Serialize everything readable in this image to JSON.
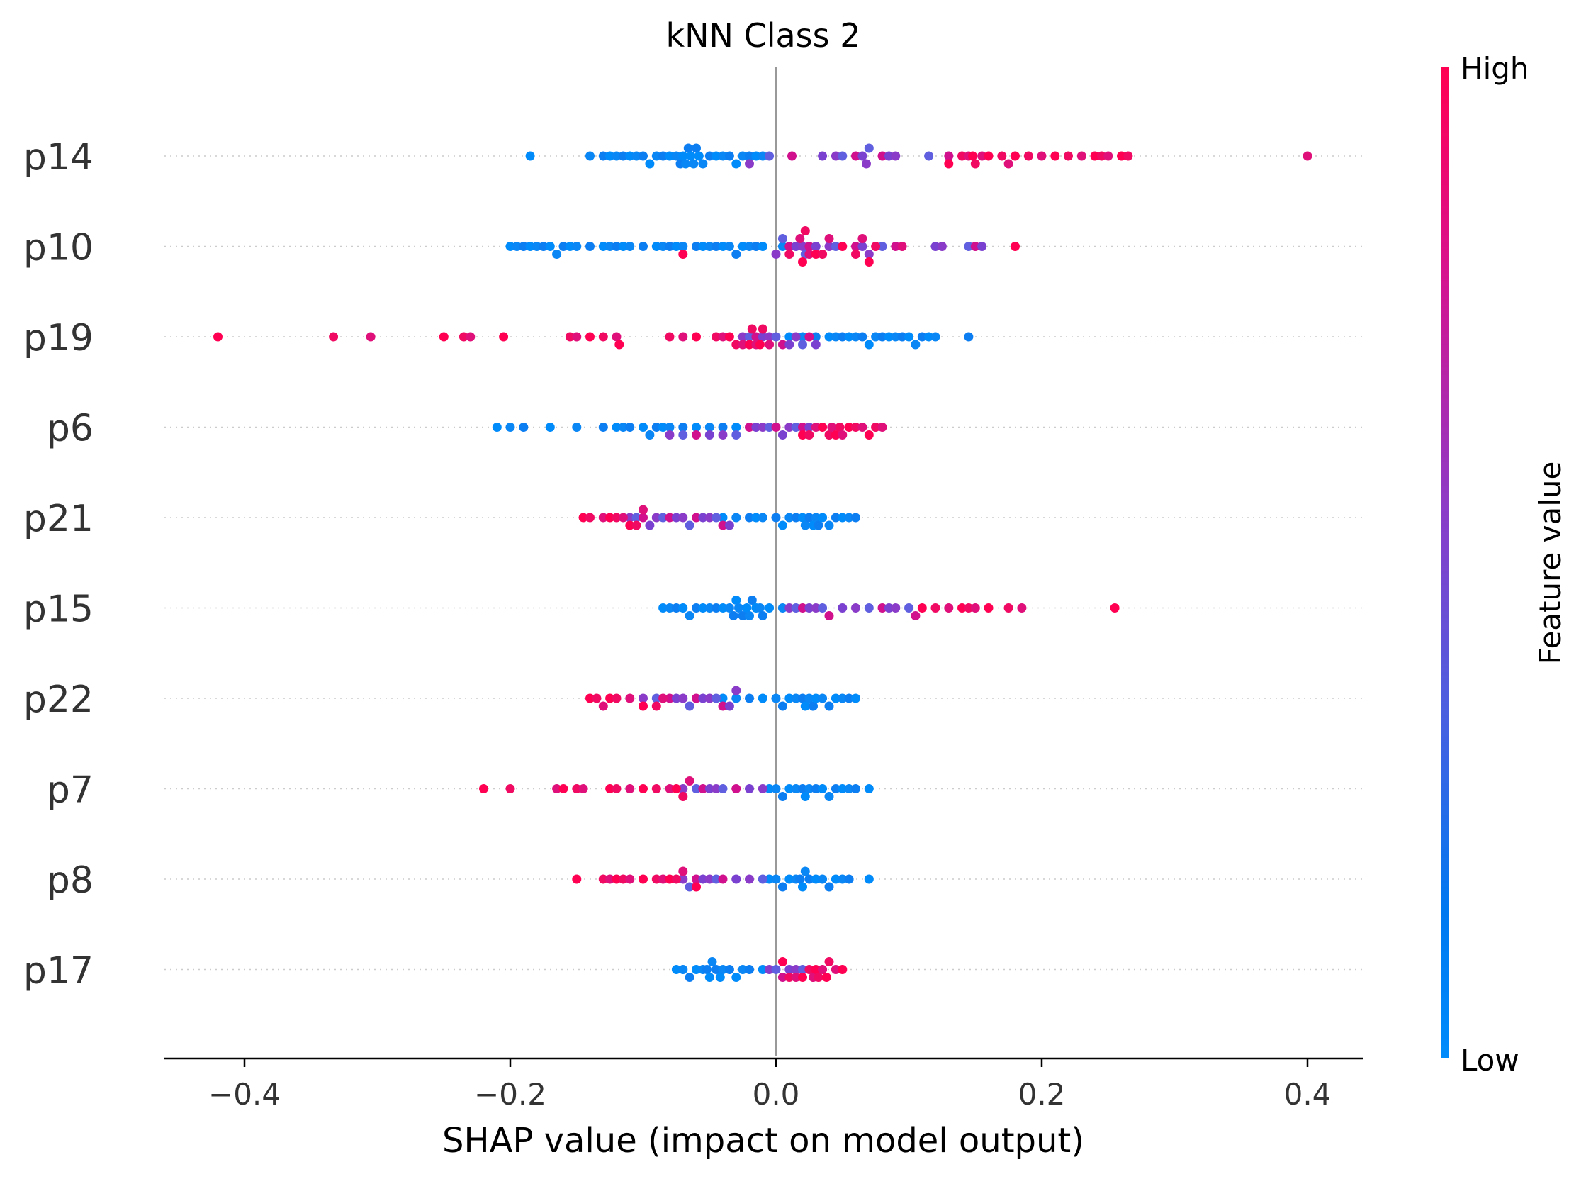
{
  "chart_data": {
    "type": "scatter",
    "subtype": "shap-beeswarm",
    "title": "kNN Class 2",
    "xlabel": "SHAP value (impact on model output)",
    "xlim": [
      -0.46,
      0.44
    ],
    "xticks": [
      {
        "value": -0.4,
        "label": "−0.4"
      },
      {
        "value": -0.2,
        "label": "−0.2"
      },
      {
        "value": 0.0,
        "label": "0.0"
      },
      {
        "value": 0.2,
        "label": "0.2"
      },
      {
        "value": 0.4,
        "label": "0.4"
      }
    ],
    "colorbar": {
      "title": "Feature value",
      "high_label": "High",
      "low_label": "Low",
      "high_color": "#ff0052",
      "low_color": "#008bfb"
    },
    "zero_line_color": "#999999",
    "features": [
      {
        "name": "p14",
        "low_points": [
          -0.185,
          -0.14,
          -0.13,
          -0.125,
          -0.12,
          -0.115,
          -0.11,
          -0.105,
          -0.1,
          -0.095,
          -0.09,
          -0.085,
          -0.08,
          -0.075,
          -0.072,
          -0.07,
          -0.068,
          -0.066,
          -0.064,
          -0.062,
          -0.06,
          -0.058,
          -0.055,
          -0.05,
          -0.045,
          -0.04,
          -0.035,
          -0.03,
          -0.025,
          -0.02,
          -0.015,
          -0.01
        ],
        "mid_points": [
          -0.02,
          -0.005,
          0.012,
          0.035,
          0.045,
          0.05,
          0.06,
          0.065,
          0.068,
          0.07,
          0.08,
          0.085,
          0.09,
          0.115,
          0.13
        ],
        "high_points": [
          0.13,
          0.14,
          0.145,
          0.148,
          0.15,
          0.155,
          0.16,
          0.17,
          0.175,
          0.18,
          0.19,
          0.2,
          0.21,
          0.22,
          0.23,
          0.24,
          0.245,
          0.25,
          0.26,
          0.265,
          0.4
        ]
      },
      {
        "name": "p10",
        "low_points": [
          -0.2,
          -0.195,
          -0.19,
          -0.185,
          -0.18,
          -0.175,
          -0.17,
          -0.165,
          -0.16,
          -0.155,
          -0.15,
          -0.14,
          -0.13,
          -0.125,
          -0.12,
          -0.115,
          -0.11,
          -0.1,
          -0.09,
          -0.085,
          -0.08,
          -0.075,
          -0.07,
          -0.06,
          -0.055,
          -0.05,
          -0.045,
          -0.04,
          -0.035,
          -0.03,
          -0.025,
          -0.02,
          -0.015,
          -0.01,
          0.005
        ],
        "mid_points": [
          0.0,
          0.005,
          0.01,
          0.015,
          0.02,
          0.022,
          0.025,
          0.03,
          0.04,
          0.045,
          0.06,
          0.065,
          0.07,
          0.08,
          0.09,
          0.12,
          0.125,
          0.145,
          0.15,
          0.155
        ],
        "high_points": [
          -0.07,
          0.01,
          0.018,
          0.02,
          0.022,
          0.025,
          0.03,
          0.035,
          0.04,
          0.05,
          0.06,
          0.065,
          0.07,
          0.075,
          0.095,
          0.18
        ]
      },
      {
        "name": "p19",
        "high_points": [
          -0.42,
          -0.333,
          -0.305,
          -0.25,
          -0.235,
          -0.23,
          -0.205,
          -0.155,
          -0.15,
          -0.14,
          -0.13,
          -0.12,
          -0.118,
          -0.08,
          -0.07,
          -0.06,
          -0.045,
          -0.04,
          -0.035,
          -0.03,
          -0.025,
          -0.02,
          -0.018,
          -0.015,
          -0.012,
          -0.01,
          -0.005
        ],
        "mid_points": [
          -0.025,
          -0.02,
          -0.015,
          -0.01,
          -0.005,
          0.0,
          0.005,
          0.01,
          0.015,
          0.02,
          0.025,
          0.03
        ],
        "low_points": [
          0.01,
          0.02,
          0.03,
          0.04,
          0.045,
          0.05,
          0.055,
          0.06,
          0.065,
          0.07,
          0.075,
          0.08,
          0.085,
          0.09,
          0.095,
          0.1,
          0.105,
          0.11,
          0.115,
          0.12,
          0.145
        ]
      },
      {
        "name": "p6",
        "low_points": [
          -0.21,
          -0.2,
          -0.19,
          -0.17,
          -0.15,
          -0.13,
          -0.12,
          -0.115,
          -0.11,
          -0.1,
          -0.095,
          -0.09,
          -0.085,
          -0.08,
          -0.07,
          -0.06,
          -0.05,
          -0.04,
          -0.03
        ],
        "mid_points": [
          -0.08,
          -0.07,
          -0.06,
          -0.05,
          -0.04,
          -0.03,
          -0.02,
          -0.015,
          -0.01,
          -0.005,
          0.0,
          0.005,
          0.01,
          0.015,
          0.02,
          0.025
        ],
        "high_points": [
          0.02,
          0.025,
          0.03,
          0.035,
          0.04,
          0.042,
          0.045,
          0.048,
          0.05,
          0.055,
          0.06,
          0.065,
          0.07,
          0.075,
          0.08
        ]
      },
      {
        "name": "p21",
        "high_points": [
          -0.145,
          -0.14,
          -0.13,
          -0.125,
          -0.12,
          -0.115,
          -0.11,
          -0.105,
          -0.1
        ],
        "mid_points": [
          -0.11,
          -0.105,
          -0.1,
          -0.095,
          -0.09,
          -0.085,
          -0.08,
          -0.075,
          -0.07,
          -0.065,
          -0.06,
          -0.055,
          -0.05,
          -0.045,
          -0.04,
          -0.035
        ],
        "low_points": [
          -0.04,
          -0.03,
          -0.02,
          -0.015,
          -0.01,
          0.0,
          0.005,
          0.01,
          0.015,
          0.02,
          0.022,
          0.025,
          0.028,
          0.03,
          0.032,
          0.035,
          0.04,
          0.045,
          0.05,
          0.055,
          0.06
        ]
      },
      {
        "name": "p15",
        "low_points": [
          -0.085,
          -0.08,
          -0.075,
          -0.07,
          -0.065,
          -0.06,
          -0.055,
          -0.05,
          -0.045,
          -0.04,
          -0.035,
          -0.032,
          -0.03,
          -0.028,
          -0.025,
          -0.022,
          -0.02,
          -0.018,
          -0.015,
          -0.012,
          -0.01,
          -0.005,
          0.005
        ],
        "mid_points": [
          0.01,
          0.015,
          0.02,
          0.025,
          0.03,
          0.035,
          0.04,
          0.05,
          0.06,
          0.07,
          0.08,
          0.085,
          0.09,
          0.1,
          0.105
        ],
        "high_points": [
          0.11,
          0.12,
          0.13,
          0.14,
          0.145,
          0.15,
          0.16,
          0.175,
          0.185,
          0.255
        ]
      },
      {
        "name": "p22",
        "high_points": [
          -0.14,
          -0.135,
          -0.13,
          -0.125,
          -0.12,
          -0.11,
          -0.1,
          -0.09,
          -0.085
        ],
        "mid_points": [
          -0.1,
          -0.09,
          -0.08,
          -0.075,
          -0.07,
          -0.065,
          -0.06,
          -0.055,
          -0.05,
          -0.045,
          -0.04,
          -0.035,
          -0.03
        ],
        "low_points": [
          -0.04,
          -0.03,
          -0.02,
          -0.01,
          0.0,
          0.005,
          0.01,
          0.015,
          0.02,
          0.022,
          0.025,
          0.028,
          0.03,
          0.035,
          0.04,
          0.045,
          0.05,
          0.055,
          0.06
        ]
      },
      {
        "name": "p7",
        "high_points": [
          -0.22,
          -0.2,
          -0.165,
          -0.16,
          -0.15,
          -0.145,
          -0.125,
          -0.12,
          -0.11,
          -0.1,
          -0.09,
          -0.08,
          -0.075,
          -0.07,
          -0.065
        ],
        "mid_points": [
          -0.07,
          -0.06,
          -0.055,
          -0.05,
          -0.045,
          -0.04,
          -0.03,
          -0.02,
          -0.01
        ],
        "low_points": [
          -0.005,
          0.0,
          0.005,
          0.01,
          0.015,
          0.02,
          0.022,
          0.025,
          0.03,
          0.035,
          0.04,
          0.045,
          0.05,
          0.055,
          0.06,
          0.07
        ]
      },
      {
        "name": "p8",
        "high_points": [
          -0.15,
          -0.13,
          -0.125,
          -0.12,
          -0.115,
          -0.11,
          -0.1,
          -0.09,
          -0.085,
          -0.08,
          -0.075,
          -0.07,
          -0.06
        ],
        "mid_points": [
          -0.07,
          -0.065,
          -0.06,
          -0.055,
          -0.05,
          -0.045,
          -0.04,
          -0.03,
          -0.02,
          -0.01
        ],
        "low_points": [
          -0.005,
          0.0,
          0.005,
          0.01,
          0.015,
          0.018,
          0.02,
          0.022,
          0.025,
          0.03,
          0.035,
          0.04,
          0.045,
          0.05,
          0.055,
          0.07
        ]
      },
      {
        "name": "p17",
        "low_points": [
          -0.075,
          -0.07,
          -0.065,
          -0.06,
          -0.055,
          -0.052,
          -0.05,
          -0.048,
          -0.045,
          -0.042,
          -0.04,
          -0.035,
          -0.03,
          -0.025,
          -0.02,
          -0.01
        ],
        "mid_points": [
          -0.005,
          0.0,
          0.005,
          0.01,
          0.015,
          0.02
        ],
        "high_points": [
          0.005,
          0.01,
          0.015,
          0.02,
          0.025,
          0.028,
          0.03,
          0.032,
          0.035,
          0.038,
          0.04,
          0.045,
          0.05
        ]
      }
    ]
  }
}
